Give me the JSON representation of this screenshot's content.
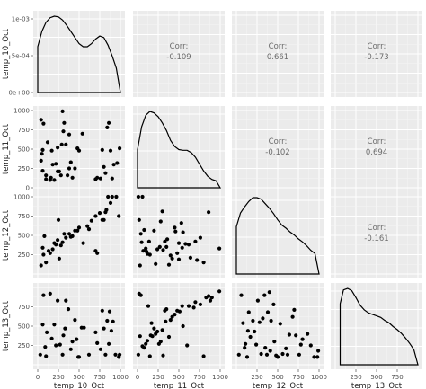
{
  "chart_data": {
    "type": "scatter",
    "variables": [
      "temp_10_Oct",
      "temp_11_Oct",
      "temp_12_Oct",
      "temp_13_Oct"
    ],
    "axis_ranges": {
      "temp_10_Oct": [
        0,
        1000
      ],
      "temp_11_Oct": [
        0,
        1000
      ],
      "temp_12_Oct": [
        0,
        1000
      ],
      "temp_13_Oct": [
        0,
        1000
      ]
    },
    "ticks": {
      "temp_10_Oct": [
        "0",
        "250",
        "500",
        "750",
        "1000"
      ],
      "temp_11_Oct": [
        "0",
        "250",
        "500",
        "750",
        "1000"
      ],
      "temp_12_Oct": [
        "250",
        "500",
        "750",
        "1000"
      ],
      "temp_13_Oct": [
        "250",
        "500",
        "750"
      ]
    },
    "density_y_ticks": [
      "0e+00",
      "5e-04",
      "1e-03"
    ],
    "corr_label": "Corr:",
    "correlations": [
      {
        "row": 0,
        "col": 1,
        "value": "-0.109"
      },
      {
        "row": 0,
        "col": 2,
        "value": "0.661"
      },
      {
        "row": 0,
        "col": 3,
        "value": "-0.173"
      },
      {
        "row": 1,
        "col": 2,
        "value": "-0.102"
      },
      {
        "row": 1,
        "col": 3,
        "value": "0.694"
      },
      {
        "row": 2,
        "col": 3,
        "value": "-0.161"
      }
    ],
    "densities": [
      {
        "var": "temp_10_Oct",
        "x": [
          0,
          50,
          100,
          150,
          200,
          250,
          300,
          350,
          400,
          450,
          500,
          550,
          600,
          650,
          700,
          750,
          800,
          850,
          900,
          950,
          1000
        ],
        "y": [
          0.6,
          0.8,
          0.92,
          0.98,
          1.0,
          0.99,
          0.95,
          0.88,
          0.8,
          0.72,
          0.64,
          0.6,
          0.6,
          0.64,
          0.7,
          0.74,
          0.72,
          0.62,
          0.48,
          0.32,
          0.0
        ]
      },
      {
        "var": "temp_11_Oct",
        "x": [
          0,
          50,
          100,
          150,
          200,
          250,
          300,
          350,
          400,
          450,
          500,
          550,
          600,
          650,
          700,
          750,
          800,
          850,
          900,
          950,
          1000
        ],
        "y": [
          0.5,
          0.8,
          0.95,
          1.0,
          0.98,
          0.93,
          0.85,
          0.75,
          0.62,
          0.54,
          0.5,
          0.49,
          0.49,
          0.46,
          0.4,
          0.31,
          0.22,
          0.15,
          0.11,
          0.09,
          0.0
        ]
      },
      {
        "var": "temp_12_Oct",
        "x": [
          0,
          50,
          100,
          150,
          200,
          250,
          300,
          350,
          400,
          450,
          500,
          550,
          600,
          650,
          700,
          750,
          800,
          850,
          900,
          950,
          1000
        ],
        "y": [
          0.62,
          0.8,
          0.88,
          0.95,
          1.0,
          1.0,
          0.98,
          0.92,
          0.86,
          0.79,
          0.71,
          0.64,
          0.6,
          0.55,
          0.51,
          0.46,
          0.42,
          0.37,
          0.31,
          0.27,
          0.0
        ]
      },
      {
        "var": "temp_13_Oct",
        "x": [
          60,
          100,
          150,
          200,
          250,
          300,
          350,
          400,
          450,
          500,
          550,
          600,
          650,
          700,
          750,
          800,
          850,
          900,
          950,
          1000
        ],
        "y": [
          0.8,
          0.98,
          1.0,
          0.97,
          0.88,
          0.78,
          0.72,
          0.68,
          0.66,
          0.64,
          0.62,
          0.58,
          0.55,
          0.5,
          0.46,
          0.41,
          0.35,
          0.28,
          0.2,
          0.0
        ]
      }
    ],
    "scatter_points": {
      "10_11": [
        [
          40,
          880
        ],
        [
          70,
          830
        ],
        [
          60,
          490
        ],
        [
          50,
          440
        ],
        [
          40,
          350
        ],
        [
          60,
          220
        ],
        [
          100,
          160
        ],
        [
          120,
          590
        ],
        [
          100,
          110
        ],
        [
          150,
          100
        ],
        [
          160,
          130
        ],
        [
          170,
          480
        ],
        [
          180,
          300
        ],
        [
          200,
          100
        ],
        [
          220,
          310
        ],
        [
          240,
          520
        ],
        [
          240,
          210
        ],
        [
          260,
          210
        ],
        [
          280,
          160
        ],
        [
          290,
          560
        ],
        [
          300,
          990
        ],
        [
          310,
          730
        ],
        [
          320,
          840
        ],
        [
          340,
          560
        ],
        [
          360,
          160
        ],
        [
          380,
          250
        ],
        [
          380,
          690
        ],
        [
          400,
          330
        ],
        [
          420,
          130
        ],
        [
          450,
          250
        ],
        [
          480,
          510
        ],
        [
          500,
          480
        ],
        [
          540,
          700
        ],
        [
          720,
          130
        ],
        [
          700,
          110
        ],
        [
          760,
          120
        ],
        [
          780,
          490
        ],
        [
          800,
          270
        ],
        [
          820,
          190
        ],
        [
          840,
          780
        ],
        [
          860,
          840
        ],
        [
          880,
          480
        ],
        [
          900,
          120
        ],
        [
          920,
          300
        ],
        [
          960,
          320
        ],
        [
          990,
          510
        ]
      ],
      "10_12": [
        [
          40,
          110
        ],
        [
          60,
          340
        ],
        [
          70,
          250
        ],
        [
          80,
          490
        ],
        [
          100,
          150
        ],
        [
          130,
          300
        ],
        [
          150,
          270
        ],
        [
          180,
          320
        ],
        [
          200,
          400
        ],
        [
          220,
          380
        ],
        [
          240,
          440
        ],
        [
          250,
          700
        ],
        [
          260,
          200
        ],
        [
          280,
          370
        ],
        [
          300,
          410
        ],
        [
          320,
          520
        ],
        [
          340,
          470
        ],
        [
          380,
          520
        ],
        [
          400,
          480
        ],
        [
          420,
          490
        ],
        [
          450,
          560
        ],
        [
          480,
          560
        ],
        [
          500,
          600
        ],
        [
          550,
          400
        ],
        [
          600,
          620
        ],
        [
          650,
          690
        ],
        [
          700,
          750
        ],
        [
          750,
          790
        ],
        [
          780,
          700
        ],
        [
          800,
          700
        ],
        [
          820,
          800
        ],
        [
          830,
          830
        ],
        [
          850,
          1000
        ],
        [
          880,
          920
        ],
        [
          900,
          1000
        ],
        [
          950,
          1000
        ],
        [
          620,
          580
        ],
        [
          700,
          300
        ],
        [
          720,
          270
        ],
        [
          980,
          750
        ]
      ],
      "10_13": [
        [
          30,
          130
        ],
        [
          60,
          520
        ],
        [
          70,
          900
        ],
        [
          90,
          230
        ],
        [
          100,
          110
        ],
        [
          110,
          420
        ],
        [
          150,
          920
        ],
        [
          170,
          340
        ],
        [
          200,
          520
        ],
        [
          220,
          250
        ],
        [
          240,
          830
        ],
        [
          270,
          260
        ],
        [
          300,
          130
        ],
        [
          310,
          380
        ],
        [
          330,
          470
        ],
        [
          340,
          830
        ],
        [
          370,
          720
        ],
        [
          400,
          200
        ],
        [
          420,
          300
        ],
        [
          450,
          580
        ],
        [
          470,
          330
        ],
        [
          490,
          100
        ],
        [
          500,
          100
        ],
        [
          530,
          480
        ],
        [
          560,
          480
        ],
        [
          620,
          130
        ],
        [
          700,
          420
        ],
        [
          720,
          280
        ],
        [
          760,
          200
        ],
        [
          780,
          700
        ],
        [
          800,
          470
        ],
        [
          820,
          130
        ],
        [
          840,
          570
        ],
        [
          860,
          270
        ],
        [
          870,
          690
        ],
        [
          890,
          440
        ],
        [
          910,
          560
        ],
        [
          940,
          130
        ],
        [
          980,
          100
        ],
        [
          990,
          130
        ]
      ],
      "11_12": [
        [
          10,
          1000
        ],
        [
          20,
          700
        ],
        [
          30,
          110
        ],
        [
          40,
          520
        ],
        [
          50,
          410
        ],
        [
          60,
          1000
        ],
        [
          70,
          300
        ],
        [
          80,
          570
        ],
        [
          100,
          330
        ],
        [
          110,
          290
        ],
        [
          120,
          260
        ],
        [
          140,
          420
        ],
        [
          150,
          250
        ],
        [
          200,
          560
        ],
        [
          220,
          130
        ],
        [
          240,
          320
        ],
        [
          270,
          350
        ],
        [
          280,
          680
        ],
        [
          300,
          810
        ],
        [
          310,
          310
        ],
        [
          330,
          420
        ],
        [
          350,
          350
        ],
        [
          360,
          450
        ],
        [
          380,
          120
        ],
        [
          400,
          240
        ],
        [
          420,
          200
        ],
        [
          450,
          600
        ],
        [
          460,
          550
        ],
        [
          480,
          270
        ],
        [
          500,
          190
        ],
        [
          530,
          660
        ],
        [
          540,
          340
        ],
        [
          550,
          540
        ],
        [
          580,
          390
        ],
        [
          620,
          380
        ],
        [
          640,
          210
        ],
        [
          700,
          420
        ],
        [
          720,
          180
        ],
        [
          760,
          470
        ],
        [
          800,
          150
        ],
        [
          860,
          800
        ],
        [
          990,
          330
        ],
        [
          500,
          400
        ]
      ],
      "11_13": [
        [
          10,
          130
        ],
        [
          20,
          920
        ],
        [
          30,
          370
        ],
        [
          40,
          900
        ],
        [
          60,
          240
        ],
        [
          80,
          220
        ],
        [
          100,
          270
        ],
        [
          120,
          310
        ],
        [
          130,
          760
        ],
        [
          150,
          110
        ],
        [
          160,
          380
        ],
        [
          170,
          540
        ],
        [
          180,
          370
        ],
        [
          200,
          470
        ],
        [
          220,
          400
        ],
        [
          240,
          430
        ],
        [
          260,
          270
        ],
        [
          280,
          300
        ],
        [
          300,
          450
        ],
        [
          310,
          120
        ],
        [
          330,
          700
        ],
        [
          340,
          560
        ],
        [
          350,
          720
        ],
        [
          380,
          360
        ],
        [
          400,
          580
        ],
        [
          420,
          620
        ],
        [
          450,
          650
        ],
        [
          480,
          700
        ],
        [
          510,
          690
        ],
        [
          540,
          760
        ],
        [
          550,
          500
        ],
        [
          600,
          250
        ],
        [
          620,
          760
        ],
        [
          680,
          740
        ],
        [
          700,
          810
        ],
        [
          760,
          780
        ],
        [
          800,
          110
        ],
        [
          830,
          870
        ],
        [
          860,
          890
        ],
        [
          880,
          830
        ],
        [
          900,
          870
        ],
        [
          990,
          950
        ]
      ],
      "12_13": [
        [
          30,
          130
        ],
        [
          60,
          900
        ],
        [
          80,
          540
        ],
        [
          100,
          220
        ],
        [
          110,
          270
        ],
        [
          130,
          100
        ],
        [
          140,
          440
        ],
        [
          150,
          680
        ],
        [
          170,
          360
        ],
        [
          200,
          570
        ],
        [
          220,
          430
        ],
        [
          240,
          260
        ],
        [
          260,
          830
        ],
        [
          280,
          550
        ],
        [
          300,
          140
        ],
        [
          320,
          600
        ],
        [
          340,
          900
        ],
        [
          350,
          220
        ],
        [
          370,
          130
        ],
        [
          380,
          680
        ],
        [
          400,
          940
        ],
        [
          410,
          180
        ],
        [
          420,
          570
        ],
        [
          450,
          780
        ],
        [
          460,
          300
        ],
        [
          480,
          120
        ],
        [
          500,
          100
        ],
        [
          530,
          530
        ],
        [
          560,
          140
        ],
        [
          600,
          210
        ],
        [
          620,
          130
        ],
        [
          640,
          390
        ],
        [
          680,
          620
        ],
        [
          700,
          710
        ],
        [
          720,
          380
        ],
        [
          760,
          130
        ],
        [
          780,
          260
        ],
        [
          800,
          330
        ],
        [
          860,
          400
        ],
        [
          900,
          250
        ],
        [
          940,
          100
        ],
        [
          980,
          100
        ],
        [
          990,
          180
        ]
      ]
    }
  }
}
